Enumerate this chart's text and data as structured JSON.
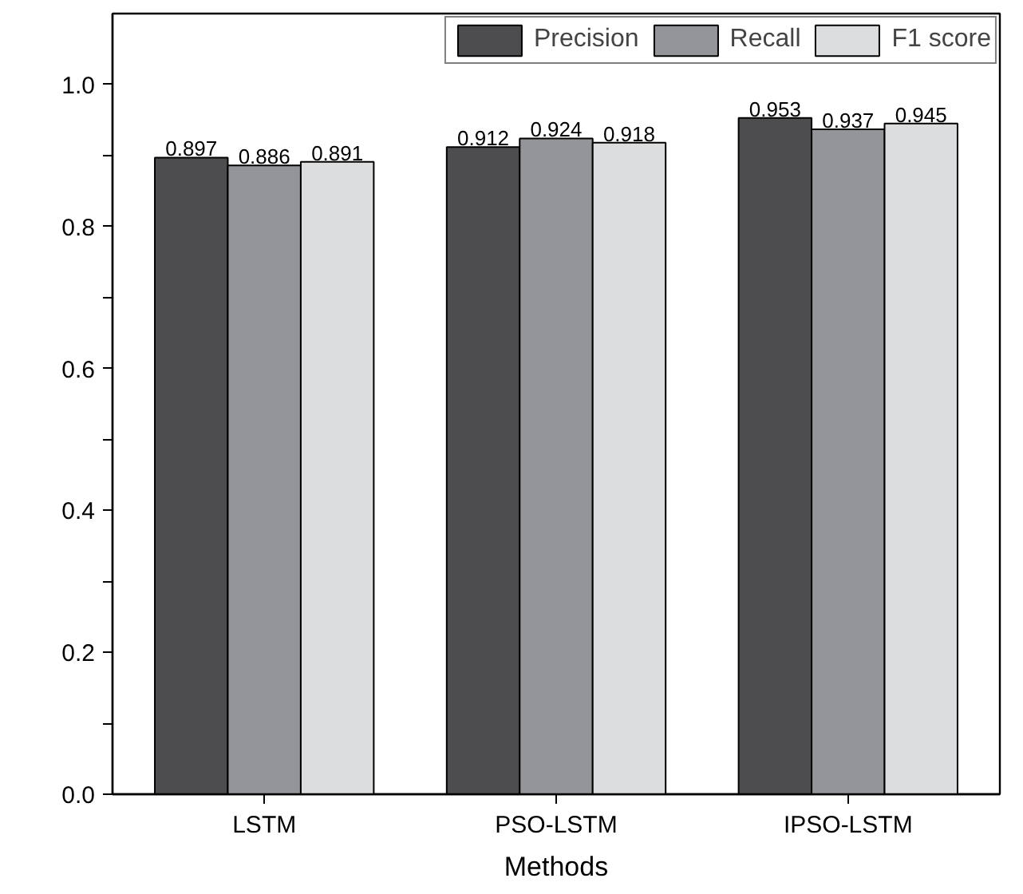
{
  "chart_data": {
    "type": "bar",
    "xlabel": "Methods",
    "categories": [
      "LSTM",
      "PSO-LSTM",
      "IPSO-LSTM"
    ],
    "series": [
      {
        "name": "Precision",
        "color": "#4d4d4f",
        "values": [
          0.897,
          0.912,
          0.953
        ]
      },
      {
        "name": "Recall",
        "color": "#939598",
        "values": [
          0.886,
          0.924,
          0.937
        ]
      },
      {
        "name": "F1 score",
        "color": "#dcdddf",
        "values": [
          0.891,
          0.918,
          0.945
        ]
      }
    ],
    "ylim": [
      0,
      1.1
    ],
    "yticks": [
      {
        "value": 0,
        "label": "0.0"
      },
      {
        "value": 0.1,
        "label": null
      },
      {
        "value": 0.2,
        "label": "0.2"
      },
      {
        "value": 0.3,
        "label": null
      },
      {
        "value": 0.4,
        "label": "0.4"
      },
      {
        "value": 0.5,
        "label": null
      },
      {
        "value": 0.6,
        "label": "0.6"
      },
      {
        "value": 0.7,
        "label": null
      },
      {
        "value": 0.8,
        "label": "0.8"
      },
      {
        "value": 0.9,
        "label": null
      },
      {
        "value": 1.0,
        "label": "1.0"
      }
    ],
    "data_labels": true,
    "legend": "top right",
    "grid": false
  }
}
